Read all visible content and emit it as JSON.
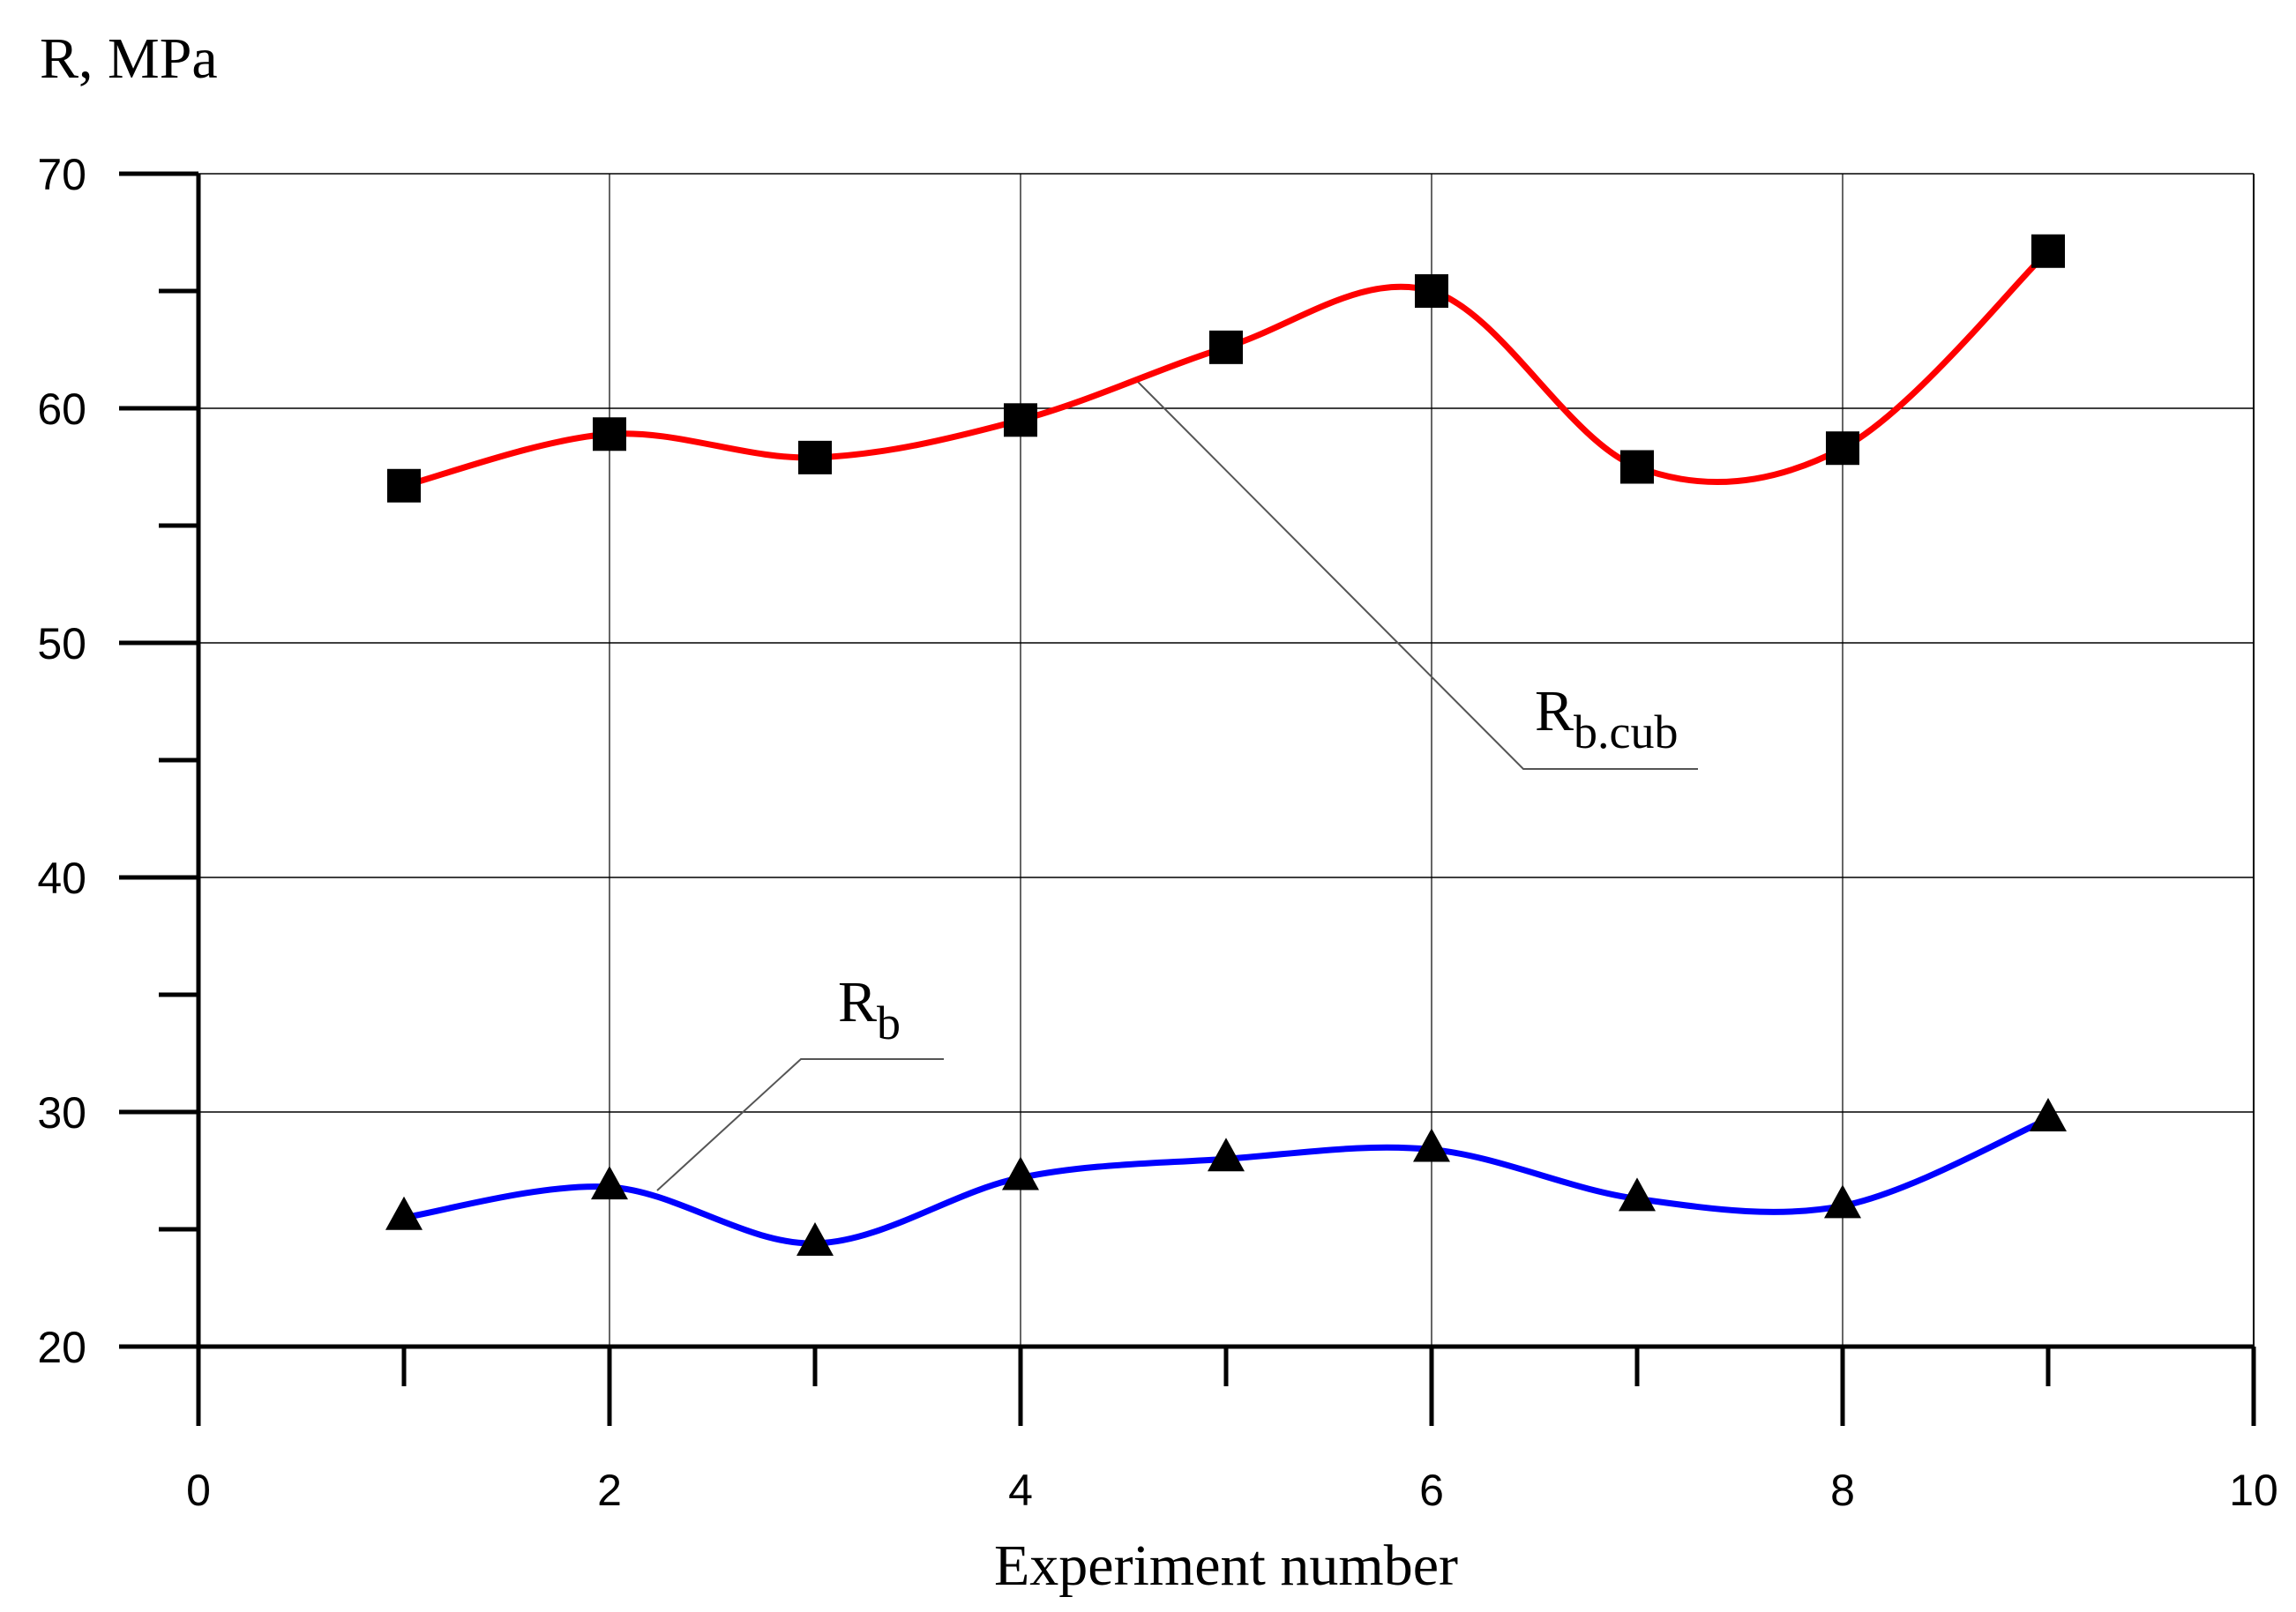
{
  "chart_data": {
    "type": "line",
    "title": "",
    "xlabel": "Experiment number",
    "ylabel": "R, MPa",
    "xlim": [
      0,
      10
    ],
    "ylim": [
      20,
      70
    ],
    "x_ticks": [
      0,
      2,
      4,
      6,
      8,
      10
    ],
    "x_minor_ticks": [
      1,
      3,
      5,
      7,
      9
    ],
    "y_ticks": [
      20,
      30,
      40,
      50,
      60,
      70
    ],
    "y_minor_ticks": [
      25,
      35,
      45,
      55,
      65
    ],
    "grid": true,
    "legend": "inline leader-line labels",
    "x": [
      1,
      2,
      3,
      4,
      5,
      6,
      7,
      8,
      9
    ],
    "series": [
      {
        "name": "Rb.cub",
        "label_main": "R",
        "label_sub": "b.cub",
        "color": "#ff0000",
        "marker": "square",
        "values": [
          56.7,
          58.9,
          57.9,
          59.5,
          62.6,
          65.0,
          57.5,
          58.3,
          66.7
        ]
      },
      {
        "name": "Rb",
        "label_main": "R",
        "label_sub": "b",
        "color": "#0000ff",
        "marker": "triangle",
        "values": [
          25.5,
          26.8,
          24.4,
          27.2,
          28.0,
          28.4,
          26.3,
          26.0,
          29.7
        ]
      }
    ]
  }
}
